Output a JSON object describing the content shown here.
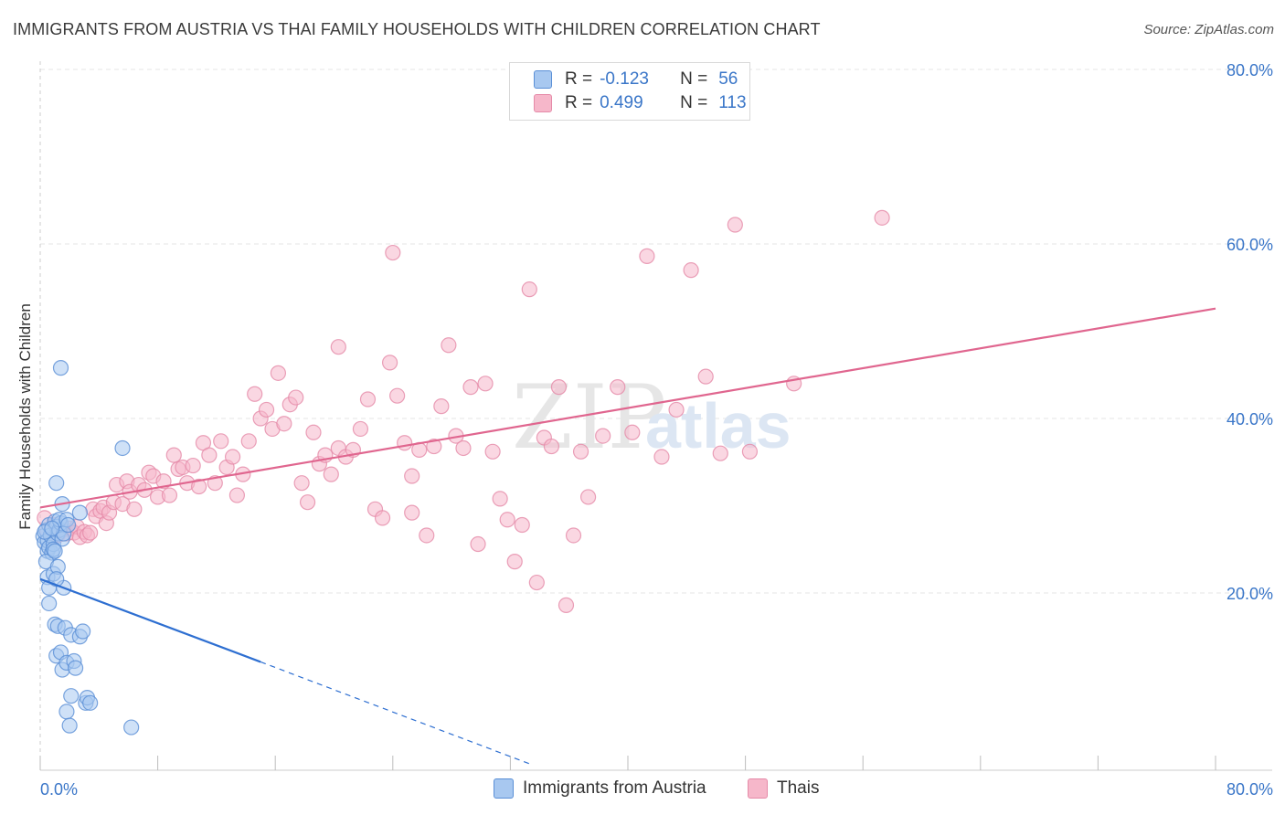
{
  "header": {
    "title": "IMMIGRANTS FROM AUSTRIA VS THAI FAMILY HOUSEHOLDS WITH CHILDREN CORRELATION CHART",
    "source": "Source: ZipAtlas.com"
  },
  "watermark": {
    "zip": "ZIP",
    "atlas": "atlas"
  },
  "legend": {
    "rows": [
      {
        "r_label": "R =",
        "r_value": "-0.123",
        "n_label": "N =",
        "n_value": "56",
        "color": "#a8c8f0"
      },
      {
        "r_label": "R =",
        "r_value": "0.499",
        "n_label": "N =",
        "n_value": "113",
        "color": "#f6b7ca"
      }
    ]
  },
  "bottom_legend": {
    "austria": "Immigrants from Austria",
    "thais": "Thais"
  },
  "colors": {
    "austria_fill": "#a8c8f0",
    "austria_stroke": "#5a8fd6",
    "austria_line": "#2e6fd1",
    "thai_fill": "#f6b7ca",
    "thai_stroke": "#e58aa8",
    "thai_line": "#e0668f",
    "axis_text": "#3a76c8",
    "grid": "#e4e4e4"
  },
  "chart_data": {
    "type": "scatter",
    "title": "IMMIGRANTS FROM AUSTRIA VS THAI FAMILY HOUSEHOLDS WITH CHILDREN CORRELATION CHART",
    "xlabel": "",
    "ylabel": "Family Households with Children",
    "xlim": [
      0,
      80
    ],
    "ylim": [
      0,
      80
    ],
    "x_tick_labels": [
      "0.0%",
      "80.0%"
    ],
    "y_ticks": [
      20,
      40,
      60,
      80
    ],
    "y_tick_labels": [
      "20.0%",
      "40.0%",
      "60.0%",
      "80.0%"
    ],
    "grid": true,
    "series": [
      {
        "name": "Immigrants from Austria",
        "r": -0.123,
        "n": 56,
        "points": [
          [
            0.2,
            26.5
          ],
          [
            0.3,
            25.8
          ],
          [
            0.4,
            27.2
          ],
          [
            0.5,
            24.8
          ],
          [
            0.5,
            26.0
          ],
          [
            0.6,
            27.8
          ],
          [
            0.6,
            25.2
          ],
          [
            0.7,
            26.6
          ],
          [
            0.8,
            24.6
          ],
          [
            0.9,
            25.6
          ],
          [
            0.4,
            23.6
          ],
          [
            0.5,
            21.8
          ],
          [
            0.6,
            20.6
          ],
          [
            0.6,
            18.8
          ],
          [
            1.0,
            28.2
          ],
          [
            1.1,
            27.6
          ],
          [
            1.2,
            26.8
          ],
          [
            1.3,
            27.2
          ],
          [
            1.4,
            28.0
          ],
          [
            1.5,
            26.2
          ],
          [
            0.9,
            25.0
          ],
          [
            1.0,
            24.8
          ],
          [
            0.9,
            22.2
          ],
          [
            1.2,
            23.0
          ],
          [
            1.6,
            20.6
          ],
          [
            1.1,
            21.6
          ],
          [
            1.4,
            45.8
          ],
          [
            1.5,
            30.2
          ],
          [
            1.1,
            32.6
          ],
          [
            1.3,
            28.4
          ],
          [
            1.6,
            26.8
          ],
          [
            2.7,
            29.2
          ],
          [
            5.6,
            36.6
          ],
          [
            1.8,
            28.4
          ],
          [
            1.9,
            27.8
          ],
          [
            1.0,
            16.4
          ],
          [
            1.2,
            16.2
          ],
          [
            1.7,
            16.0
          ],
          [
            2.1,
            15.2
          ],
          [
            2.7,
            15.0
          ],
          [
            2.9,
            15.6
          ],
          [
            1.1,
            12.8
          ],
          [
            1.4,
            13.2
          ],
          [
            1.5,
            11.2
          ],
          [
            1.8,
            12.0
          ],
          [
            2.3,
            12.2
          ],
          [
            2.4,
            11.4
          ],
          [
            1.8,
            6.4
          ],
          [
            2.0,
            4.8
          ],
          [
            2.1,
            8.2
          ],
          [
            3.1,
            7.4
          ],
          [
            3.2,
            8.0
          ],
          [
            3.4,
            7.4
          ],
          [
            6.2,
            4.6
          ],
          [
            0.3,
            27.0
          ],
          [
            0.8,
            27.4
          ]
        ],
        "trend_solid": {
          "x": [
            0,
            15
          ],
          "y": [
            21.6,
            12.1
          ]
        },
        "trend_dashed": {
          "x": [
            15,
            33.5
          ],
          "y": [
            12.1,
            0.3
          ]
        }
      },
      {
        "name": "Thais",
        "r": 0.499,
        "n": 113,
        "points": [
          [
            0.3,
            28.6
          ],
          [
            0.5,
            27.0
          ],
          [
            0.8,
            26.4
          ],
          [
            1.0,
            27.8
          ],
          [
            1.2,
            26.6
          ],
          [
            1.5,
            27.2
          ],
          [
            1.8,
            26.8
          ],
          [
            2.0,
            27.4
          ],
          [
            2.3,
            26.9
          ],
          [
            2.5,
            27.6
          ],
          [
            2.7,
            26.4
          ],
          [
            3.0,
            27.0
          ],
          [
            3.2,
            26.6
          ],
          [
            3.4,
            26.9
          ],
          [
            3.6,
            29.6
          ],
          [
            3.8,
            28.8
          ],
          [
            4.1,
            29.4
          ],
          [
            4.3,
            29.8
          ],
          [
            4.5,
            28.0
          ],
          [
            4.7,
            29.2
          ],
          [
            5.0,
            30.4
          ],
          [
            5.2,
            32.4
          ],
          [
            5.6,
            30.2
          ],
          [
            5.9,
            32.8
          ],
          [
            6.1,
            31.6
          ],
          [
            6.4,
            29.6
          ],
          [
            6.7,
            32.4
          ],
          [
            7.1,
            31.8
          ],
          [
            7.4,
            33.8
          ],
          [
            7.7,
            33.4
          ],
          [
            8.0,
            31.0
          ],
          [
            8.4,
            32.8
          ],
          [
            8.8,
            31.2
          ],
          [
            9.1,
            35.8
          ],
          [
            9.4,
            34.2
          ],
          [
            9.7,
            34.4
          ],
          [
            10.0,
            32.6
          ],
          [
            10.4,
            34.6
          ],
          [
            10.8,
            32.2
          ],
          [
            11.1,
            37.2
          ],
          [
            11.5,
            35.8
          ],
          [
            11.9,
            32.6
          ],
          [
            12.3,
            37.4
          ],
          [
            12.7,
            34.4
          ],
          [
            13.1,
            35.6
          ],
          [
            13.4,
            31.2
          ],
          [
            13.8,
            33.6
          ],
          [
            14.2,
            37.4
          ],
          [
            14.6,
            42.8
          ],
          [
            15.0,
            40.0
          ],
          [
            15.4,
            41.0
          ],
          [
            15.8,
            38.8
          ],
          [
            16.2,
            45.2
          ],
          [
            16.6,
            39.4
          ],
          [
            17.0,
            41.6
          ],
          [
            17.4,
            42.4
          ],
          [
            17.8,
            32.6
          ],
          [
            18.2,
            30.4
          ],
          [
            18.6,
            38.4
          ],
          [
            19.0,
            34.8
          ],
          [
            19.4,
            35.8
          ],
          [
            19.8,
            33.6
          ],
          [
            20.3,
            36.6
          ],
          [
            20.8,
            35.6
          ],
          [
            21.3,
            36.4
          ],
          [
            21.8,
            38.8
          ],
          [
            22.3,
            42.2
          ],
          [
            22.8,
            29.6
          ],
          [
            23.3,
            28.6
          ],
          [
            23.8,
            46.4
          ],
          [
            24.3,
            42.6
          ],
          [
            24.8,
            37.2
          ],
          [
            25.3,
            33.4
          ],
          [
            25.8,
            36.4
          ],
          [
            26.3,
            26.6
          ],
          [
            26.8,
            36.8
          ],
          [
            27.3,
            41.4
          ],
          [
            27.8,
            48.4
          ],
          [
            28.3,
            38.0
          ],
          [
            28.8,
            36.6
          ],
          [
            29.3,
            43.6
          ],
          [
            29.8,
            25.6
          ],
          [
            30.3,
            44.0
          ],
          [
            30.8,
            36.2
          ],
          [
            31.3,
            30.8
          ],
          [
            31.8,
            28.4
          ],
          [
            32.3,
            23.6
          ],
          [
            32.8,
            27.8
          ],
          [
            33.3,
            54.8
          ],
          [
            33.8,
            21.2
          ],
          [
            34.3,
            37.8
          ],
          [
            34.8,
            36.8
          ],
          [
            35.3,
            43.6
          ],
          [
            35.8,
            18.6
          ],
          [
            36.3,
            26.6
          ],
          [
            36.8,
            36.2
          ],
          [
            37.3,
            31.0
          ],
          [
            38.3,
            38.0
          ],
          [
            39.3,
            43.6
          ],
          [
            40.3,
            38.4
          ],
          [
            41.3,
            58.6
          ],
          [
            42.3,
            35.6
          ],
          [
            43.3,
            41.0
          ],
          [
            44.3,
            57.0
          ],
          [
            45.3,
            44.8
          ],
          [
            46.3,
            36.0
          ],
          [
            47.3,
            62.2
          ],
          [
            48.3,
            36.2
          ],
          [
            51.3,
            44.0
          ],
          [
            57.3,
            63.0
          ],
          [
            24.0,
            59.0
          ],
          [
            20.3,
            48.2
          ],
          [
            25.3,
            29.2
          ]
        ],
        "trend_solid": {
          "x": [
            0,
            80
          ],
          "y": [
            29.8,
            52.6
          ]
        }
      }
    ]
  }
}
